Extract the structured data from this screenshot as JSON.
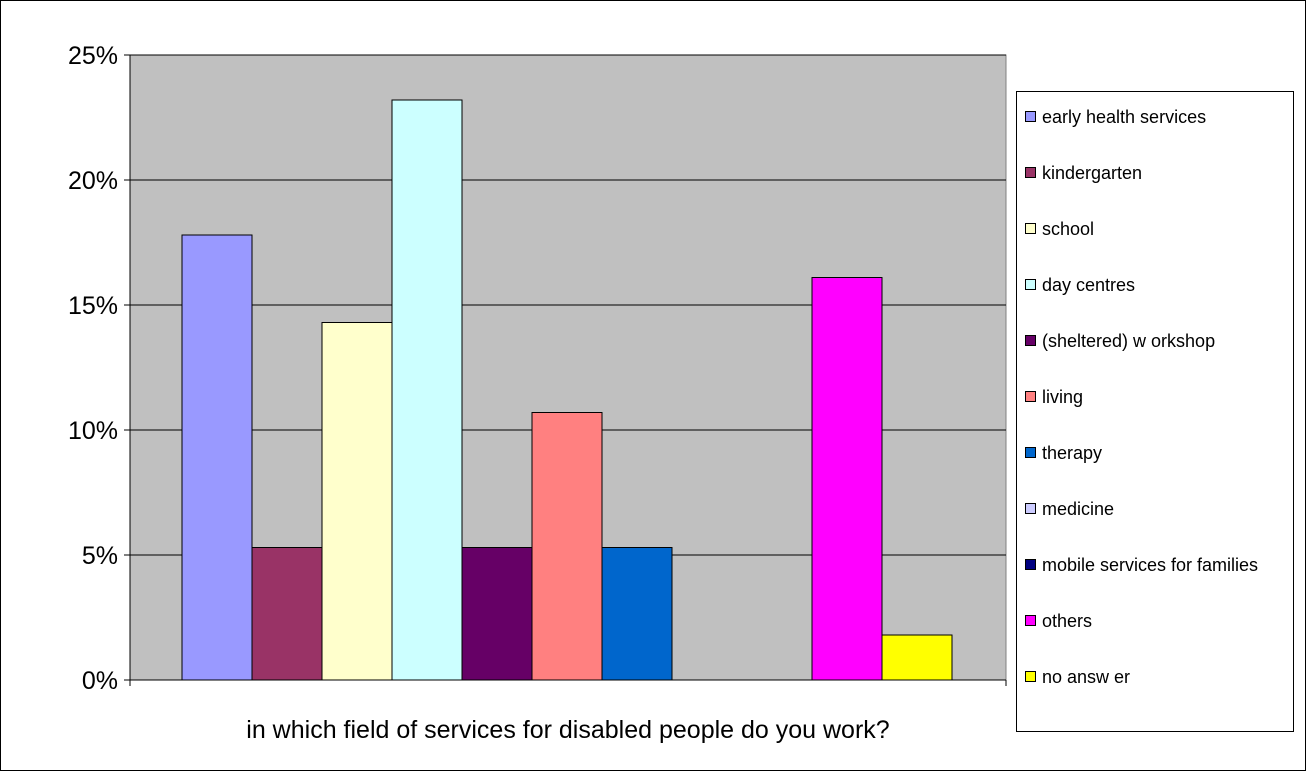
{
  "chart_data": {
    "type": "bar",
    "title": "",
    "xlabel": "in which field of services for disabled people do you work?",
    "ylabel": "",
    "ylim": [
      0,
      0.25
    ],
    "y_ticks": [
      "0%",
      "5%",
      "10%",
      "15%",
      "20%",
      "25%"
    ],
    "grid": true,
    "legend_position": "right",
    "series": [
      {
        "name": "early health services",
        "value": 0.178,
        "color": "#9999FF"
      },
      {
        "name": "kindergarten",
        "value": 0.053,
        "color": "#993366"
      },
      {
        "name": "school",
        "value": 0.143,
        "color": "#FFFFCC"
      },
      {
        "name": "day centres",
        "value": 0.232,
        "color": "#CCFFFF"
      },
      {
        "name": "(sheltered) w orkshop",
        "value": 0.053,
        "color": "#660066"
      },
      {
        "name": "living",
        "value": 0.107,
        "color": "#FF8080"
      },
      {
        "name": "therapy",
        "value": 0.053,
        "color": "#0066CC"
      },
      {
        "name": "medicine",
        "value": 0,
        "color": "#CCCCFF"
      },
      {
        "name": "mobile services for families",
        "value": 0,
        "color": "#000080"
      },
      {
        "name": "others",
        "value": 0.161,
        "color": "#FF00FF"
      },
      {
        "name": "no answ er",
        "value": 0.018,
        "color": "#FFFF00"
      }
    ]
  },
  "colors": {
    "plot_background": "#C0C0C0",
    "gridline": "#000000",
    "outer_border": "#000000"
  }
}
